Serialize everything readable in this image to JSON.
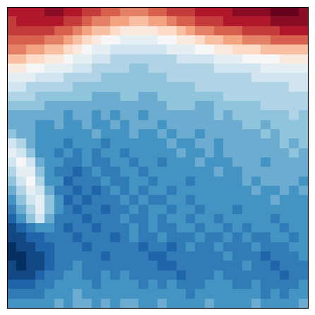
{
  "chart_data": {
    "type": "heatmap",
    "tick_labels": false,
    "color_range": [
      -10,
      10
    ],
    "cells": [
      [
        8,
        8,
        8,
        8,
        9,
        9,
        8,
        8,
        7,
        7,
        6,
        6,
        5,
        5,
        5,
        6,
        6,
        7,
        7,
        7,
        8,
        8,
        8,
        8,
        9,
        9,
        9,
        9,
        10,
        10,
        10,
        9
      ],
      [
        7,
        8,
        8,
        8,
        8,
        8,
        7,
        7,
        6,
        5,
        5,
        4,
        4,
        3,
        3,
        4,
        4,
        5,
        6,
        6,
        7,
        7,
        7,
        8,
        8,
        8,
        8,
        8,
        9,
        9,
        9,
        9
      ],
      [
        7,
        7,
        7,
        7,
        7,
        6,
        6,
        5,
        4,
        3,
        3,
        2,
        1,
        1,
        1,
        1,
        2,
        2,
        3,
        4,
        5,
        5,
        6,
        6,
        6,
        7,
        7,
        7,
        7,
        8,
        8,
        8
      ],
      [
        6,
        6,
        6,
        6,
        5,
        5,
        4,
        3,
        2,
        1,
        0,
        0,
        -1,
        -1,
        -1,
        -1,
        0,
        0,
        1,
        1,
        2,
        3,
        3,
        4,
        4,
        5,
        5,
        5,
        6,
        6,
        6,
        6
      ],
      [
        5,
        5,
        4,
        4,
        3,
        3,
        2,
        1,
        0,
        -1,
        -1,
        -2,
        -2,
        -2,
        -2,
        -2,
        -2,
        -1,
        -1,
        -1,
        0,
        0,
        1,
        1,
        2,
        2,
        2,
        3,
        3,
        3,
        3,
        3
      ],
      [
        3,
        3,
        2,
        2,
        1,
        1,
        0,
        -1,
        -1,
        -2,
        -2,
        -3,
        -3,
        -3,
        -3,
        -3,
        -3,
        -3,
        -2,
        -2,
        -2,
        -2,
        -1,
        -1,
        -1,
        0,
        0,
        0,
        0,
        1,
        1,
        1
      ],
      [
        1,
        1,
        0,
        0,
        -1,
        -1,
        -1,
        -2,
        -2,
        -3,
        -3,
        -3,
        -3,
        -4,
        -4,
        -3,
        -3,
        -3,
        -3,
        -3,
        -3,
        -3,
        -2,
        -2,
        -2,
        -2,
        -2,
        -1,
        -1,
        -1,
        -1,
        -1
      ],
      [
        -1,
        -1,
        -1,
        -2,
        -2,
        -2,
        -3,
        -3,
        -3,
        -3,
        -4,
        -4,
        -4,
        -4,
        -4,
        -4,
        -4,
        -3,
        -3,
        -3,
        -3,
        -3,
        -3,
        -3,
        -3,
        -3,
        -2,
        -2,
        -2,
        -2,
        -2,
        -2
      ],
      [
        -2,
        -2,
        -3,
        -3,
        -3,
        -3,
        -3,
        -4,
        -4,
        -4,
        -4,
        -4,
        -4,
        -4,
        -4,
        -4,
        -4,
        -4,
        -4,
        -4,
        -3,
        -3,
        -3,
        -3,
        -3,
        -3,
        -3,
        -3,
        -3,
        -3,
        -2,
        -2
      ],
      [
        -3,
        -3,
        -3,
        -4,
        -4,
        -4,
        -4,
        -4,
        -4,
        -5,
        -5,
        -5,
        -4,
        -4,
        -5,
        -5,
        -4,
        -4,
        -4,
        -4,
        -4,
        -4,
        -4,
        -3,
        -3,
        -3,
        -3,
        -3,
        -3,
        -3,
        -3,
        -3
      ],
      [
        -4,
        -4,
        -4,
        -4,
        -5,
        -5,
        -5,
        -5,
        -5,
        -5,
        -5,
        -5,
        -5,
        -5,
        -5,
        -5,
        -5,
        -4,
        -4,
        -4,
        -5,
        -5,
        -4,
        -4,
        -4,
        -4,
        -4,
        -3,
        -3,
        -3,
        -3,
        -3
      ],
      [
        -5,
        -5,
        -5,
        -5,
        -5,
        -5,
        -6,
        -5,
        -5,
        -6,
        -5,
        -6,
        -5,
        -5,
        -6,
        -5,
        -5,
        -5,
        -5,
        -5,
        -5,
        -5,
        -4,
        -5,
        -4,
        -4,
        -4,
        -4,
        -4,
        -4,
        -3,
        -4
      ],
      [
        -5,
        -5,
        -5,
        -6,
        -6,
        -5,
        -6,
        -6,
        -5,
        -6,
        -6,
        -5,
        -6,
        -5,
        -5,
        -5,
        -6,
        -5,
        -5,
        -5,
        -5,
        -5,
        -5,
        -5,
        -5,
        -4,
        -4,
        -5,
        -4,
        -4,
        -4,
        -4
      ],
      [
        -4,
        -5,
        -5,
        -6,
        -6,
        -6,
        -6,
        -6,
        -6,
        -5,
        -6,
        -6,
        -6,
        -5,
        -6,
        -6,
        -5,
        -6,
        -5,
        -5,
        -6,
        -5,
        -5,
        -5,
        -5,
        -5,
        -5,
        -4,
        -5,
        -4,
        -4,
        -4
      ],
      [
        -2,
        -3,
        -5,
        -6,
        -6,
        -6,
        -7,
        -6,
        -6,
        -6,
        -7,
        -6,
        -6,
        -6,
        -6,
        -6,
        -6,
        -5,
        -6,
        -6,
        -5,
        -5,
        -6,
        -5,
        -5,
        -5,
        -5,
        -5,
        -5,
        -4,
        -5,
        -4
      ],
      [
        -1,
        -2,
        -4,
        -6,
        -6,
        -7,
        -6,
        -7,
        -6,
        -7,
        -6,
        -6,
        -7,
        -6,
        -6,
        -6,
        -6,
        -6,
        -5,
        -6,
        -6,
        -5,
        -6,
        -5,
        -5,
        -5,
        -5,
        -5,
        -5,
        -5,
        -4,
        -5
      ],
      [
        -2,
        0,
        -2,
        -5,
        -6,
        -6,
        -7,
        -7,
        -6,
        -7,
        -7,
        -6,
        -6,
        -7,
        -6,
        -6,
        -7,
        -6,
        -6,
        -6,
        -5,
        -6,
        -6,
        -6,
        -5,
        -5,
        -5,
        -6,
        -5,
        -5,
        -5,
        -5
      ],
      [
        -3,
        -1,
        -1,
        -4,
        -6,
        -7,
        -7,
        -8,
        -7,
        -6,
        -7,
        -7,
        -6,
        -6,
        -7,
        -6,
        -6,
        -6,
        -6,
        -6,
        -6,
        -6,
        -5,
        -6,
        -6,
        -5,
        -5,
        -5,
        -5,
        -5,
        -5,
        -5
      ],
      [
        -4,
        -2,
        0,
        -3,
        -6,
        -6,
        -8,
        -7,
        -7,
        -7,
        -6,
        -7,
        -7,
        -6,
        -6,
        -7,
        -6,
        -6,
        -6,
        -7,
        -6,
        -6,
        -6,
        -6,
        -6,
        -5,
        -6,
        -5,
        -5,
        -5,
        -5,
        -6
      ],
      [
        -5,
        -3,
        -1,
        -2,
        -5,
        -7,
        -7,
        -8,
        -7,
        -8,
        -7,
        -6,
        -7,
        -6,
        -7,
        -6,
        -6,
        -7,
        -6,
        -6,
        -6,
        -6,
        -6,
        -6,
        -6,
        -6,
        -5,
        -6,
        -6,
        -5,
        -6,
        -5
      ],
      [
        -6,
        -4,
        -2,
        -1,
        -4,
        -6,
        -8,
        -7,
        -8,
        -7,
        -7,
        -7,
        -6,
        -7,
        -6,
        -7,
        -7,
        -6,
        -6,
        -7,
        -6,
        -6,
        -6,
        -6,
        -6,
        -6,
        -6,
        -6,
        -5,
        -6,
        -6,
        -6
      ],
      [
        -7,
        -5,
        -3,
        -1,
        -4,
        -6,
        -7,
        -8,
        -7,
        -7,
        -8,
        -7,
        -7,
        -6,
        -7,
        -6,
        -6,
        -7,
        -6,
        -6,
        -7,
        -6,
        -6,
        -6,
        -7,
        -6,
        -6,
        -6,
        -6,
        -6,
        -6,
        -6
      ],
      [
        -8,
        -6,
        -4,
        -2,
        -5,
        -7,
        -7,
        -7,
        -8,
        -7,
        -7,
        -7,
        -6,
        -7,
        -7,
        -6,
        -7,
        -6,
        -6,
        -7,
        -6,
        -6,
        -7,
        -6,
        -6,
        -6,
        -6,
        -6,
        -7,
        -6,
        -6,
        -6
      ],
      [
        -9,
        -8,
        -7,
        -6,
        -6,
        -7,
        -8,
        -7,
        -7,
        -8,
        -7,
        -7,
        -7,
        -6,
        -7,
        -6,
        -7,
        -7,
        -6,
        -6,
        -7,
        -6,
        -6,
        -7,
        -6,
        -7,
        -6,
        -6,
        -6,
        -7,
        -6,
        -6
      ],
      [
        -9,
        -9,
        -8,
        -8,
        -7,
        -7,
        -7,
        -8,
        -7,
        -7,
        -7,
        -8,
        -7,
        -6,
        -7,
        -7,
        -6,
        -7,
        -7,
        -7,
        -6,
        -7,
        -7,
        -6,
        -7,
        -6,
        -7,
        -7,
        -6,
        -6,
        -7,
        -6
      ],
      [
        -10,
        -9,
        -9,
        -8,
        -8,
        -7,
        -7,
        -7,
        -8,
        -7,
        -7,
        -7,
        -7,
        -7,
        -8,
        -7,
        -7,
        -8,
        -7,
        -6,
        -7,
        -7,
        -6,
        -7,
        -7,
        -7,
        -6,
        -7,
        -7,
        -7,
        -6,
        -6
      ],
      [
        -10,
        -10,
        -9,
        -9,
        -8,
        -7,
        -7,
        -7,
        -7,
        -7,
        -8,
        -7,
        -7,
        -7,
        -7,
        -8,
        -8,
        -7,
        -7,
        -7,
        -7,
        -7,
        -7,
        -6,
        -7,
        -7,
        -7,
        -8,
        -7,
        -7,
        -7,
        -6
      ],
      [
        -9,
        -10,
        -9,
        -9,
        -8,
        -7,
        -7,
        -6,
        -7,
        -7,
        -7,
        -7,
        -7,
        -7,
        -7,
        -7,
        -8,
        -8,
        -7,
        -7,
        -7,
        -7,
        -7,
        -7,
        -7,
        -6,
        -7,
        -7,
        -8,
        -7,
        -7,
        -7
      ],
      [
        -9,
        -9,
        -9,
        -8,
        -7,
        -7,
        -6,
        -6,
        -7,
        -7,
        -6,
        -7,
        -6,
        -7,
        -7,
        -7,
        -7,
        -7,
        -8,
        -7,
        -7,
        -7,
        -6,
        -7,
        -7,
        -7,
        -7,
        -7,
        -7,
        -8,
        -7,
        -7
      ],
      [
        -8,
        -8,
        -8,
        -7,
        -7,
        -6,
        -6,
        -6,
        -6,
        -7,
        -6,
        -6,
        -6,
        -6,
        -7,
        -6,
        -7,
        -6,
        -7,
        -7,
        -7,
        -6,
        -6,
        -6,
        -7,
        -7,
        -6,
        -7,
        -7,
        -7,
        -7,
        -6
      ],
      [
        -7,
        -7,
        -7,
        -7,
        -6,
        -6,
        -6,
        -5,
        -6,
        -6,
        -6,
        -6,
        -6,
        -6,
        -6,
        -6,
        -6,
        -6,
        -6,
        -7,
        -6,
        -6,
        -6,
        -6,
        -6,
        -6,
        -6,
        -7,
        -6,
        -7,
        -6,
        -6
      ],
      [
        -6,
        -6,
        -6,
        -6,
        -6,
        -5,
        -6,
        -5,
        -5,
        -6,
        -5,
        -6,
        -5,
        -5,
        -6,
        -6,
        -5,
        -6,
        -6,
        -6,
        -6,
        -5,
        -6,
        -6,
        -6,
        -6,
        -5,
        -6,
        -6,
        -6,
        -6,
        -5
      ]
    ]
  }
}
